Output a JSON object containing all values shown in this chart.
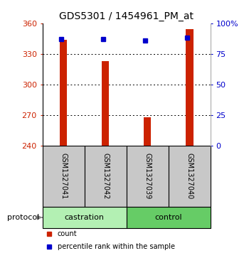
{
  "title": "GDS5301 / 1454961_PM_at",
  "samples": [
    "GSM1327041",
    "GSM1327042",
    "GSM1327039",
    "GSM1327040"
  ],
  "bar_values": [
    344,
    323,
    268,
    354
  ],
  "percentile_values": [
    87,
    87,
    86,
    88
  ],
  "bar_color": "#cc2200",
  "percentile_color": "#0000cc",
  "ymin": 240,
  "ymax": 360,
  "yticks_left": [
    240,
    270,
    300,
    330,
    360
  ],
  "yticks_right": [
    0,
    25,
    50,
    75,
    100
  ],
  "legend_count_label": "count",
  "legend_pct_label": "percentile rank within the sample",
  "protocol_label": "protocol",
  "background_color": "#ffffff",
  "sample_box_color": "#c8c8c8",
  "group_box_light": "#b3f0b3",
  "group_box_medium": "#66cc66",
  "bar_width": 0.18,
  "title_fontsize": 10,
  "axis_fontsize": 8,
  "sample_fontsize": 7,
  "group_fontsize": 8,
  "legend_fontsize": 7
}
